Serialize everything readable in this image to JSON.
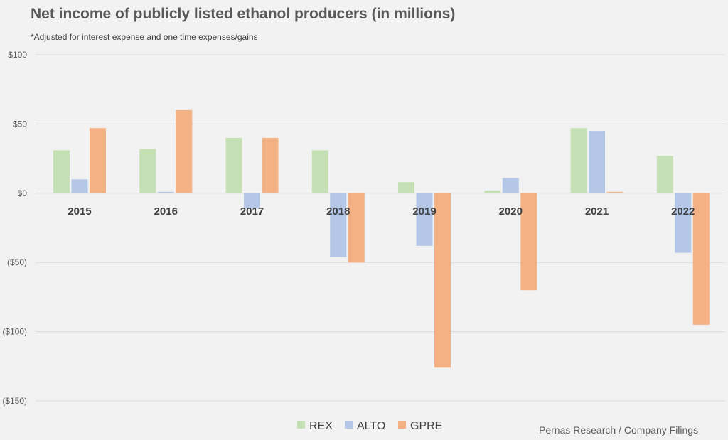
{
  "title": "Net income of publicly listed ethanol producers (in millions)",
  "subtitle": "*Adjusted for interest expense and one time expenses/gains",
  "source": "Pernas Research / Company Filings",
  "colors": {
    "REX": "#c5e0b4",
    "ALTO": "#b4c7e7",
    "GPRE": "#f4b183",
    "grid": "#d9d9d9",
    "background": "#f2f2f2"
  },
  "chart_data": {
    "type": "bar",
    "title": "Net income of publicly listed ethanol producers (in millions)",
    "xlabel": "",
    "ylabel": "",
    "categories": [
      "2015",
      "2016",
      "2017",
      "2018",
      "2019",
      "2020",
      "2021",
      "2022"
    ],
    "series": [
      {
        "name": "REX",
        "values": [
          31,
          32,
          40,
          31,
          8,
          2,
          47,
          27
        ]
      },
      {
        "name": "ALTO",
        "values": [
          10,
          1,
          -11,
          -46,
          -38,
          11,
          45,
          -43
        ]
      },
      {
        "name": "GPRE",
        "values": [
          47,
          60,
          40,
          -50,
          -126,
          -70,
          1,
          -95
        ]
      }
    ],
    "ylim": [
      -150,
      100
    ],
    "yticks": [
      100,
      50,
      0,
      -50,
      -100,
      -150
    ],
    "ytick_labels": [
      "$100",
      "$50",
      "$0",
      "($50)",
      "($100)",
      "($150)"
    ],
    "grid": true,
    "legend_position": "bottom-center"
  }
}
